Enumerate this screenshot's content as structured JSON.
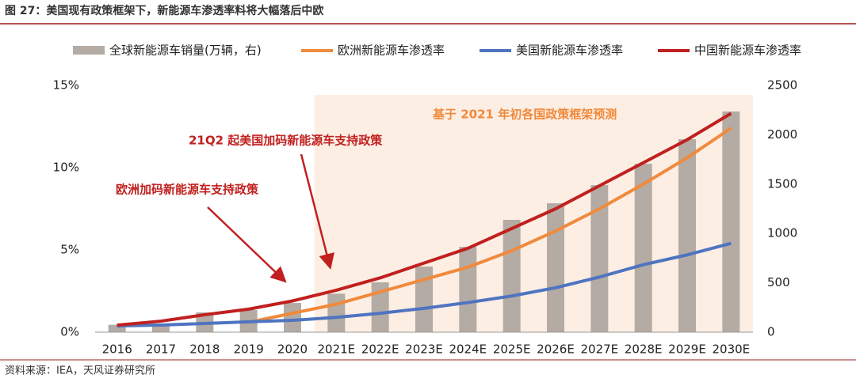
{
  "chart_data": {
    "type": "bar_line",
    "title": "图 27：美国现有政策框架下，新能源车渗透率料将大幅落后中欧",
    "source": "资料来源：IEA，天风证券研究所",
    "annotations": [
      "基于 2021 年初各国政策框架预测",
      "21Q2 起美国加码新能源车支持政策",
      "欧洲加码新能源车支持政策"
    ],
    "categories": [
      "2016",
      "2017",
      "2018",
      "2019",
      "2020",
      "2021E",
      "2022E",
      "2023E",
      "2024E",
      "2025E",
      "2026E",
      "2027E",
      "2028E",
      "2029E",
      "2030E"
    ],
    "series": [
      {
        "name": "全球新能源车销量(万辆，右)",
        "color": "#b3aba4",
        "kind": "bar",
        "axis": "y2",
        "values": [
          75,
          80,
          200,
          224,
          296,
          390,
          505,
          665,
          865,
          1138,
          1306,
          1490,
          1707,
          1955,
          2236
        ]
      },
      {
        "name": "欧洲新能源车渗透率",
        "color": "#f08a3c",
        "kind": "line",
        "values": [
          null,
          null,
          null,
          0.6,
          1.15,
          1.7,
          2.45,
          3.2,
          3.95,
          4.95,
          6.15,
          7.5,
          9.0,
          10.6,
          12.4
        ]
      },
      {
        "name": "美国新能源车渗透率",
        "color": "#4f74c0",
        "kind": "line",
        "values": [
          0.38,
          0.43,
          0.53,
          0.63,
          0.72,
          0.9,
          1.15,
          1.45,
          1.8,
          2.2,
          2.7,
          3.35,
          4.1,
          4.7,
          5.4
        ]
      },
      {
        "name": "中国新能源车渗透率",
        "color": "#c0201f",
        "kind": "line",
        "values": [
          0.43,
          0.67,
          1.06,
          1.4,
          1.9,
          2.55,
          3.3,
          4.2,
          5.1,
          6.3,
          7.5,
          8.9,
          10.3,
          11.7,
          13.3
        ]
      }
    ],
    "ylim": [
      0,
      15
    ],
    "yticks": [
      {
        "value": 0,
        "label": "0%"
      },
      {
        "value": 5,
        "label": "5%"
      },
      {
        "value": 10,
        "label": "10%"
      },
      {
        "value": 15,
        "label": "15%"
      }
    ],
    "y2lim": [
      0,
      2500
    ],
    "y2ticks": [
      0,
      500,
      1000,
      1500,
      2000,
      2500
    ],
    "forecast_from": "2021E"
  }
}
